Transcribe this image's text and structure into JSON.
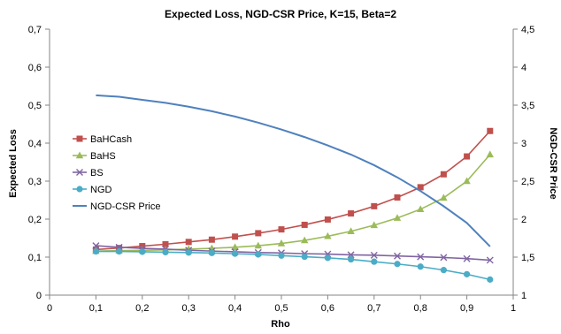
{
  "chart_data": {
    "type": "line",
    "title": "Expected Loss, NGD-CSR Price, K=15, Beta=2",
    "xlabel": "Rho",
    "ylabel": "Expected Loss",
    "y2label": "NGD-CSR Price",
    "xlim": [
      0,
      1
    ],
    "ylim": [
      0,
      0.7
    ],
    "y2lim": [
      1,
      4.5
    ],
    "xticks": [
      "0",
      "0,1",
      "0,2",
      "0,3",
      "0,4",
      "0,5",
      "0,6",
      "0,7",
      "0,8",
      "0,9",
      "1"
    ],
    "yticks": [
      "0",
      "0,1",
      "0,2",
      "0,3",
      "0,4",
      "0,5",
      "0,6",
      "0,7"
    ],
    "y2ticks": [
      "1",
      "1,5",
      "2",
      "2,5",
      "3",
      "3,5",
      "4",
      "4,5"
    ],
    "x": [
      0.1,
      0.15,
      0.2,
      0.25,
      0.3,
      0.35,
      0.4,
      0.45,
      0.5,
      0.55,
      0.6,
      0.65,
      0.7,
      0.75,
      0.8,
      0.85,
      0.9,
      0.95
    ],
    "legend_position": "left",
    "grid": false,
    "series": [
      {
        "name": "BaHCash",
        "axis": "left",
        "color": "#C0504D",
        "marker": "square",
        "values": [
          0.12,
          0.124,
          0.129,
          0.134,
          0.14,
          0.146,
          0.154,
          0.163,
          0.173,
          0.185,
          0.199,
          0.215,
          0.234,
          0.257,
          0.284,
          0.318,
          0.365,
          0.432
        ]
      },
      {
        "name": "BaHS",
        "axis": "left",
        "color": "#9BBB59",
        "marker": "triangle",
        "values": [
          0.116,
          0.117,
          0.118,
          0.119,
          0.121,
          0.123,
          0.126,
          0.13,
          0.136,
          0.144,
          0.155,
          0.168,
          0.184,
          0.203,
          0.226,
          0.256,
          0.3,
          0.37
        ]
      },
      {
        "name": "BS",
        "axis": "left",
        "color": "#8064A2",
        "marker": "x",
        "values": [
          0.13,
          0.126,
          0.123,
          0.121,
          0.118,
          0.116,
          0.114,
          0.112,
          0.111,
          0.109,
          0.108,
          0.106,
          0.105,
          0.103,
          0.101,
          0.099,
          0.096,
          0.092
        ]
      },
      {
        "name": "NGD",
        "axis": "left",
        "color": "#4BACC6",
        "marker": "circle",
        "values": [
          0.115,
          0.115,
          0.114,
          0.113,
          0.112,
          0.111,
          0.109,
          0.107,
          0.104,
          0.101,
          0.098,
          0.094,
          0.088,
          0.082,
          0.075,
          0.066,
          0.055,
          0.041
        ]
      },
      {
        "name": "NGD-CSR Price",
        "axis": "right",
        "color": "#4F81BD",
        "marker": "none",
        "values": [
          3.63,
          3.61,
          3.57,
          3.53,
          3.48,
          3.42,
          3.35,
          3.27,
          3.18,
          3.08,
          2.97,
          2.85,
          2.71,
          2.55,
          2.37,
          2.17,
          1.95,
          1.64
        ]
      }
    ]
  }
}
